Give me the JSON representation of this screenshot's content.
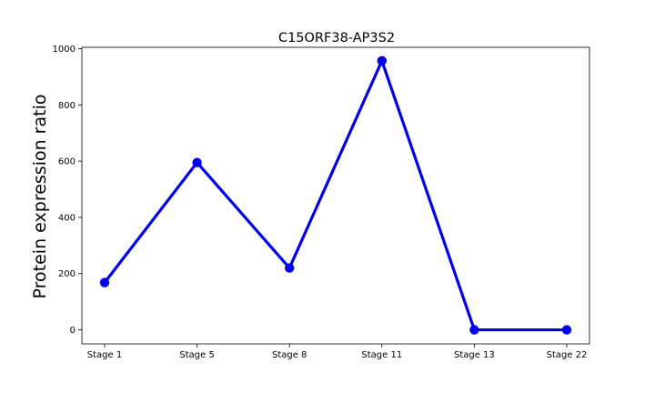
{
  "chart_data": {
    "type": "line",
    "title": "C15ORF38-AP3S2",
    "xlabel": "",
    "ylabel": "Protein expression ratio",
    "categories": [
      "Stage 1",
      "Stage 5",
      "Stage 8",
      "Stage 11",
      "Stage 13",
      "Stage 22"
    ],
    "series": [
      {
        "values": [
          168,
          595,
          220,
          957,
          0,
          0
        ]
      }
    ],
    "ylim": [
      -50,
      1005
    ],
    "yticks": [
      0,
      200,
      400,
      600,
      800,
      1000
    ],
    "grid": false,
    "line_color": "#0000ee",
    "marker": "circle"
  }
}
